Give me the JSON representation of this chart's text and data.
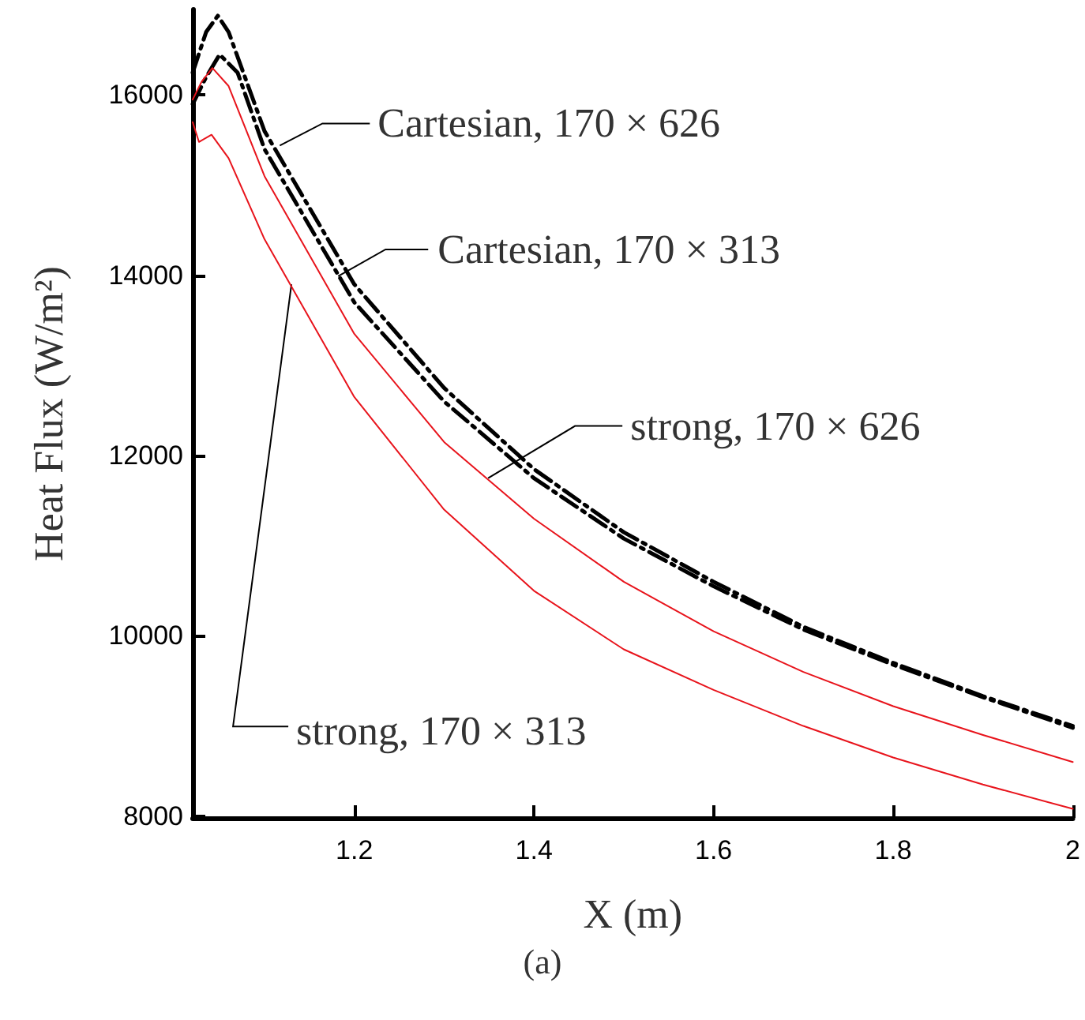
{
  "chart_data": {
    "type": "line",
    "xlabel": "X (m)",
    "ylabel": "Heat Flux (W/m²)",
    "xlim": [
      1.02,
      2
    ],
    "xticks": [
      1.2,
      1.4,
      1.6,
      1.8,
      2
    ],
    "ylim": [
      7980,
      16950
    ],
    "yticks": [
      8000,
      10000,
      12000,
      14000,
      16000
    ],
    "grid": false,
    "marker": "none",
    "series": [
      {
        "color": "#000000",
        "line_style": "dashed",
        "x": [
          1.02,
          1.035,
          1.048,
          1.06,
          1.1,
          1.2,
          1.3,
          1.4,
          1.5,
          1.6,
          1.7,
          1.8,
          1.9,
          2.0
        ],
        "values": [
          16250,
          16700,
          16880,
          16700,
          15600,
          13900,
          12750,
          11850,
          11150,
          10600,
          10100,
          9700,
          9330,
          9000
        ]
      },
      {
        "color": "#000000",
        "line_style": "dashed",
        "x": [
          1.02,
          1.035,
          1.05,
          1.07,
          1.1,
          1.2,
          1.3,
          1.4,
          1.5,
          1.6,
          1.7,
          1.8,
          1.9,
          2.0
        ],
        "values": [
          15900,
          16200,
          16450,
          16250,
          15400,
          13700,
          12600,
          11750,
          11080,
          10550,
          10070,
          9680,
          9320,
          8980
        ]
      },
      {
        "color": "#e8141c",
        "line_style": "solid",
        "x": [
          1.02,
          1.03,
          1.042,
          1.06,
          1.1,
          1.2,
          1.3,
          1.4,
          1.5,
          1.6,
          1.7,
          1.8,
          1.9,
          2.0
        ],
        "values": [
          15950,
          16150,
          16300,
          16100,
          15100,
          13350,
          12150,
          11300,
          10600,
          10050,
          9600,
          9220,
          8900,
          8600
        ]
      },
      {
        "color": "#e8141c",
        "line_style": "solid",
        "x": [
          1.02,
          1.027,
          1.041,
          1.06,
          1.1,
          1.2,
          1.3,
          1.4,
          1.5,
          1.6,
          1.7,
          1.8,
          1.9,
          2.0
        ],
        "values": [
          15700,
          15480,
          15560,
          15300,
          14400,
          12650,
          11400,
          10500,
          9850,
          9400,
          9000,
          8650,
          8350,
          8080
        ]
      }
    ],
    "annotations": [
      {
        "text": "Cartesian, 170 × 626",
        "x": 1.117,
        "y": 15440
      },
      {
        "text": "Cartesian, 170 × 313",
        "x": 1.182,
        "y": 13990
      },
      {
        "text": "strong, 170 × 626",
        "x": 1.349,
        "y": 11750
      },
      {
        "text": "strong, 170 × 313",
        "x": 1.13,
        "y": 13900
      },
      "(a)"
    ]
  }
}
